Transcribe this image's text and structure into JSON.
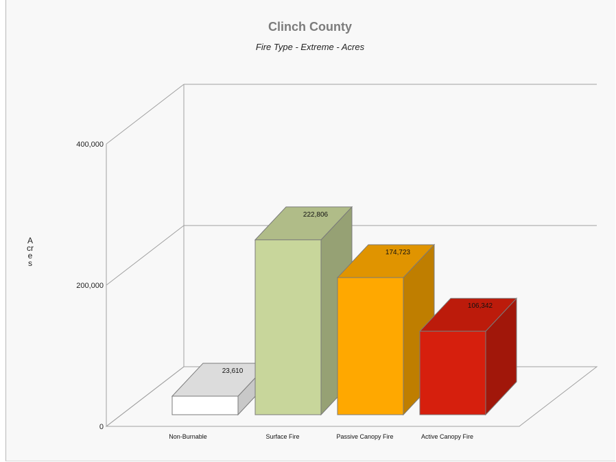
{
  "chart_data": {
    "type": "bar",
    "title": "Clinch County",
    "subtitle": "Fire Type - Extreme - Acres",
    "ylabel": "Acres",
    "xlabel": "",
    "categories": [
      "Non-Burnable",
      "Surface Fire",
      "Passive Canopy Fire",
      "Active Canopy Fire"
    ],
    "values": [
      23610,
      222806,
      174723,
      106342
    ],
    "value_labels": [
      "23,610",
      "222,806",
      "174,723",
      "106,342"
    ],
    "colors": [
      "#ffffff",
      "#c8d69b",
      "#ffa800",
      "#d61f0d"
    ],
    "ylim": [
      0,
      400000
    ],
    "yticks": [
      0,
      200000,
      400000
    ],
    "ytick_labels": [
      "0",
      "200,000",
      "400,000"
    ],
    "grid": true,
    "style": "3d-column",
    "legend": "none"
  }
}
